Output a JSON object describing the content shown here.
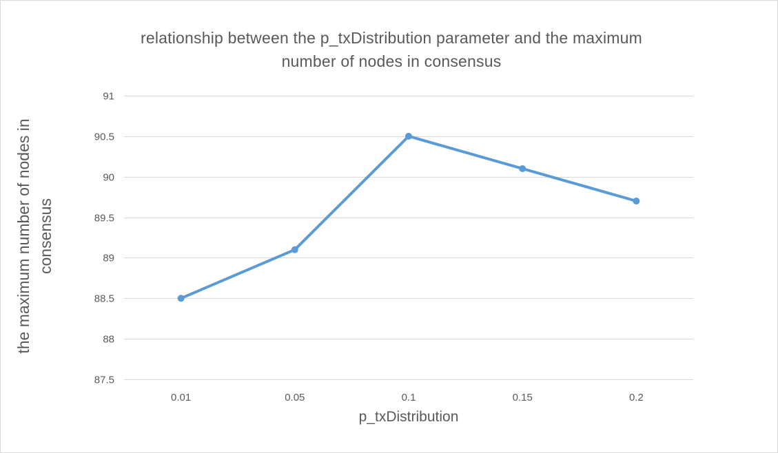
{
  "chart_data": {
    "type": "line",
    "title": "relationship between the p_txDistribution parameter and the maximum\nnumber of nodes in consensus",
    "xlabel": "p_txDistribution",
    "ylabel": "the maximum number of nodes in\nconsensus",
    "categories": [
      "0.01",
      "0.05",
      "0.1",
      "0.15",
      "0.2"
    ],
    "series": [
      {
        "values": [
          88.5,
          89.1,
          90.5,
          90.1,
          89.7
        ],
        "color": "#5b9bd5"
      }
    ],
    "ylim": [
      87.5,
      91
    ],
    "yticks": [
      "87.5",
      "88",
      "88.5",
      "89",
      "89.5",
      "90",
      "90.5",
      "91"
    ],
    "grid": true,
    "legend": "none",
    "colors": {
      "grid": "#d9d9d9",
      "text": "#595959",
      "line": "#5b9bd5"
    }
  }
}
